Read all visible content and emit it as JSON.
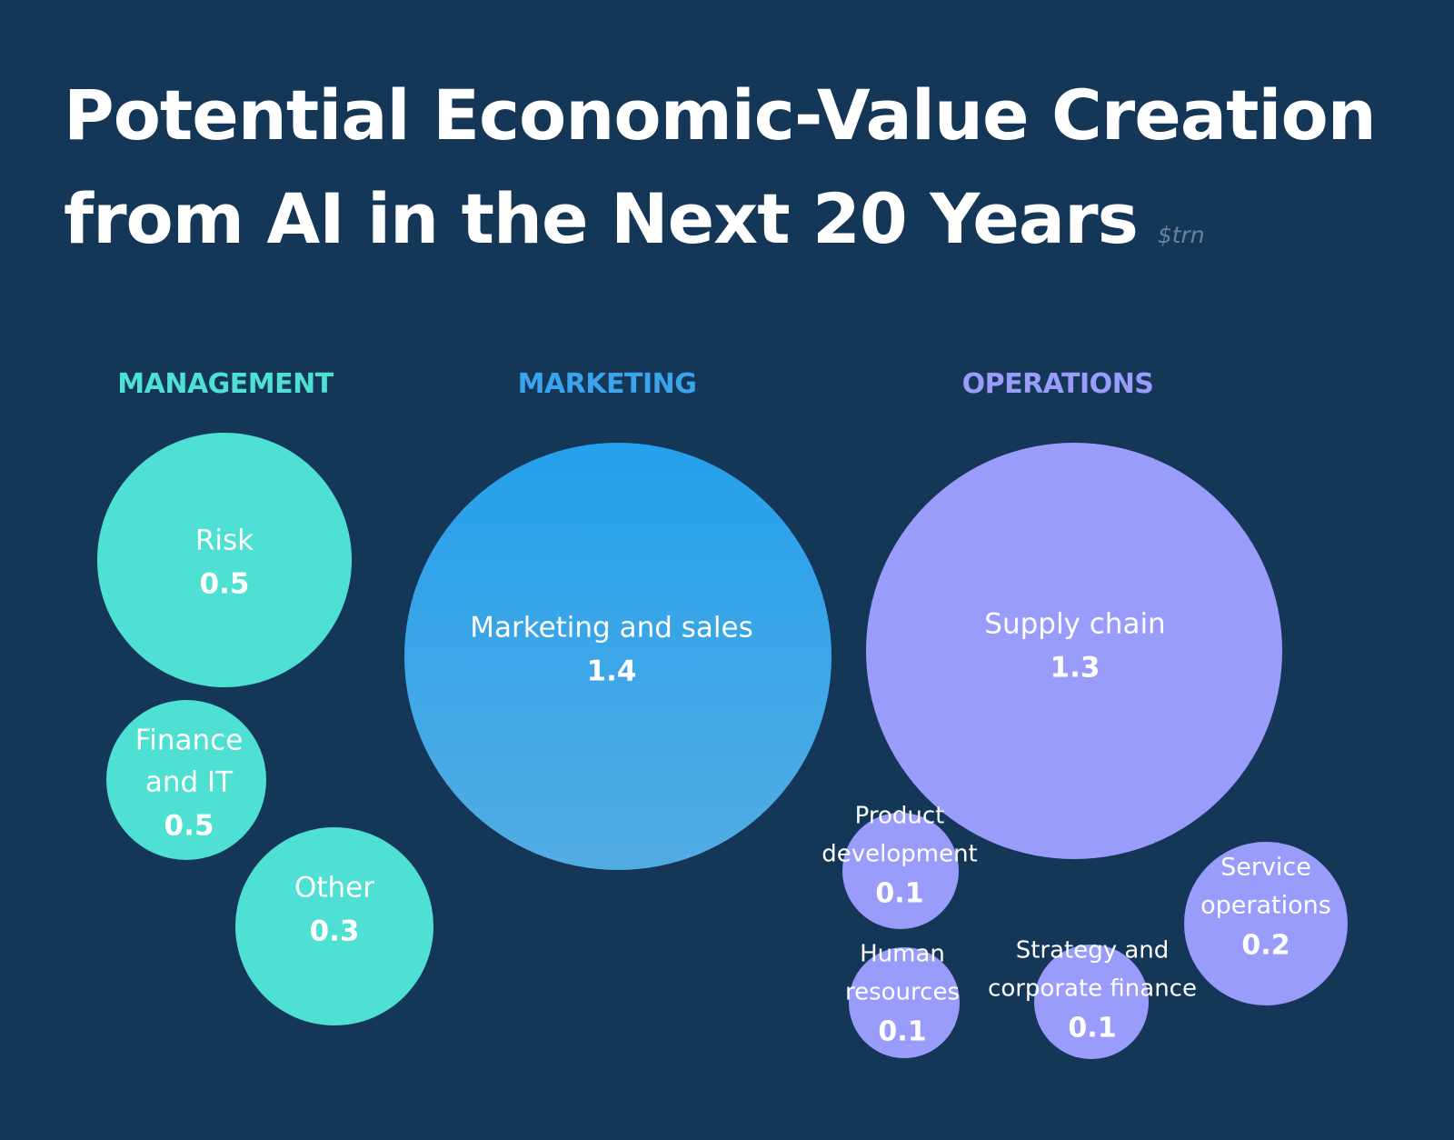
{
  "title": {
    "line1": "Potential Economic-Value Creation",
    "line2": "from AI in the Next 20 Years",
    "unit": "$trn"
  },
  "colors": {
    "background": "#143657",
    "management": "#4ee0d3",
    "marketing_top": "#25a0ec",
    "marketing_bottom": "#52ace3",
    "operations": "#9a9cfb",
    "text": "#ffffff"
  },
  "chart_data": {
    "type": "bubble",
    "unit": "$trn",
    "groups": [
      {
        "name": "MANAGEMENT",
        "color": "#4ee0d3"
      },
      {
        "name": "MARKETING",
        "color": "#3aa4ec"
      },
      {
        "name": "OPERATIONS",
        "color": "#9a9cfb"
      }
    ],
    "bubbles": [
      {
        "group": "MANAGEMENT",
        "label": [
          "Risk"
        ],
        "value": 0.5,
        "display": "0.5"
      },
      {
        "group": "MANAGEMENT",
        "label": [
          "Finance",
          "and IT"
        ],
        "value": 0.5,
        "display": "0.5"
      },
      {
        "group": "MANAGEMENT",
        "label": [
          "Other"
        ],
        "value": 0.3,
        "display": "0.3"
      },
      {
        "group": "MARKETING",
        "label": [
          "Marketing and sales"
        ],
        "value": 1.4,
        "display": "1.4"
      },
      {
        "group": "OPERATIONS",
        "label": [
          "Supply chain"
        ],
        "value": 1.3,
        "display": "1.3"
      },
      {
        "group": "OPERATIONS",
        "label": [
          "Product",
          "development"
        ],
        "value": 0.1,
        "display": "0.1"
      },
      {
        "group": "OPERATIONS",
        "label": [
          "Service",
          "operations"
        ],
        "value": 0.2,
        "display": "0.2"
      },
      {
        "group": "OPERATIONS",
        "label": [
          "Human",
          "resources"
        ],
        "value": 0.1,
        "display": "0.1"
      },
      {
        "group": "OPERATIONS",
        "label": [
          "Strategy and",
          "corporate finance"
        ],
        "value": 0.1,
        "display": "0.1"
      }
    ]
  }
}
